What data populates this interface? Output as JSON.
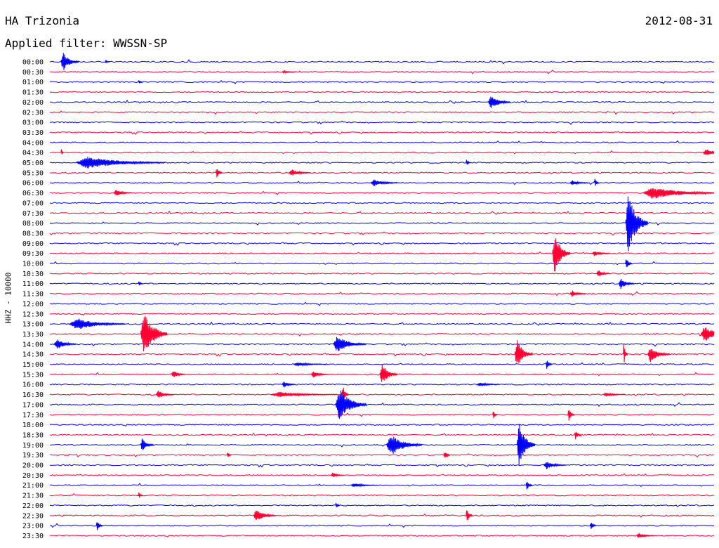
{
  "header": {
    "station": "HA Trizonia",
    "date": "2012-08-31",
    "filter_label": "Applied filter: WWSSN-SP"
  },
  "colors": {
    "odd_trace": "#0000ff",
    "even_trace": "#ff0033",
    "text": "#000000",
    "background": "#ffffff"
  },
  "chart_data": {
    "type": "line",
    "title": "HA Trizonia",
    "subtitle": "Applied filter: WWSSN-SP",
    "ylabel": "HHZ - 10000",
    "row_labels": [
      "00:00",
      "00:30",
      "01:00",
      "01:30",
      "02:00",
      "02:30",
      "03:00",
      "03:30",
      "04:00",
      "04:30",
      "05:00",
      "05:30",
      "06:00",
      "06:30",
      "07:00",
      "07:30",
      "08:00",
      "08:30",
      "09:00",
      "09:30",
      "10:00",
      "10:30",
      "11:00",
      "11:30",
      "12:00",
      "12:30",
      "13:00",
      "13:30",
      "14:00",
      "14:30",
      "15:00",
      "15:30",
      "16:00",
      "16:30",
      "17:00",
      "17:30",
      "18:00",
      "18:30",
      "19:00",
      "19:30",
      "20:00",
      "20:30",
      "21:00",
      "21:30",
      "22:00",
      "22:30",
      "23:00",
      "23:30"
    ],
    "minutes_per_row": 30,
    "grid": false,
    "events": [
      {
        "row": 0,
        "minute": 0.5,
        "amp": 14,
        "dur": 0.8
      },
      {
        "row": 0,
        "minute": 2.5,
        "amp": 3,
        "dur": 0.2
      },
      {
        "row": 1,
        "minute": 10.5,
        "amp": 2,
        "dur": 0.6
      },
      {
        "row": 2,
        "minute": 4.0,
        "amp": 3,
        "dur": 0.2
      },
      {
        "row": 4,
        "minute": 19.8,
        "amp": 10,
        "dur": 1.0
      },
      {
        "row": 9,
        "minute": 0.5,
        "amp": 6,
        "dur": 0.1
      },
      {
        "row": 9,
        "minute": 29.5,
        "amp": 5,
        "dur": 1.2
      },
      {
        "row": 10,
        "minute": 1.2,
        "amp": 9,
        "dur": 4.0
      },
      {
        "row": 10,
        "minute": 18.8,
        "amp": 6,
        "dur": 0.2
      },
      {
        "row": 11,
        "minute": 7.5,
        "amp": 10,
        "dur": 0.3
      },
      {
        "row": 11,
        "minute": 10.8,
        "amp": 5,
        "dur": 1.0
      },
      {
        "row": 12,
        "minute": 14.5,
        "amp": 5,
        "dur": 1.2
      },
      {
        "row": 12,
        "minute": 23.5,
        "amp": 4,
        "dur": 0.8
      },
      {
        "row": 12,
        "minute": 24.6,
        "amp": 7,
        "dur": 0.2
      },
      {
        "row": 13,
        "minute": 2.9,
        "amp": 5,
        "dur": 0.8
      },
      {
        "row": 13,
        "minute": 26.8,
        "amp": 9,
        "dur": 3.5
      },
      {
        "row": 16,
        "minute": 26.0,
        "amp": 48,
        "dur": 1.0
      },
      {
        "row": 19,
        "minute": 22.7,
        "amp": 30,
        "dur": 0.8
      },
      {
        "row": 19,
        "minute": 24.5,
        "amp": 4,
        "dur": 0.8
      },
      {
        "row": 20,
        "minute": 26.0,
        "amp": 9,
        "dur": 0.3
      },
      {
        "row": 21,
        "minute": 24.7,
        "amp": 6,
        "dur": 0.6
      },
      {
        "row": 22,
        "minute": 25.7,
        "amp": 8,
        "dur": 0.7
      },
      {
        "row": 22,
        "minute": 4.0,
        "amp": 4,
        "dur": 0.2
      },
      {
        "row": 23,
        "minute": 23.5,
        "amp": 5,
        "dur": 0.7
      },
      {
        "row": 26,
        "minute": 0.9,
        "amp": 9,
        "dur": 2.5
      },
      {
        "row": 27,
        "minute": 4.1,
        "amp": 36,
        "dur": 1.2
      },
      {
        "row": 27,
        "minute": 29.4,
        "amp": 12,
        "dur": 1.3
      },
      {
        "row": 28,
        "minute": 0.2,
        "amp": 8,
        "dur": 1.0
      },
      {
        "row": 28,
        "minute": 12.8,
        "amp": 12,
        "dur": 1.5
      },
      {
        "row": 29,
        "minute": 21.0,
        "amp": 22,
        "dur": 0.8
      },
      {
        "row": 29,
        "minute": 25.9,
        "amp": 16,
        "dur": 0.2
      },
      {
        "row": 29,
        "minute": 27.0,
        "amp": 12,
        "dur": 1.0
      },
      {
        "row": 30,
        "minute": 11.0,
        "amp": 3,
        "dur": 1.5
      },
      {
        "row": 30,
        "minute": 22.4,
        "amp": 7,
        "dur": 0.3
      },
      {
        "row": 31,
        "minute": 5.5,
        "amp": 6,
        "dur": 0.6
      },
      {
        "row": 31,
        "minute": 11.8,
        "amp": 5,
        "dur": 0.8
      },
      {
        "row": 31,
        "minute": 14.9,
        "amp": 16,
        "dur": 0.8
      },
      {
        "row": 32,
        "minute": 10.5,
        "amp": 5,
        "dur": 0.6
      },
      {
        "row": 32,
        "minute": 19.3,
        "amp": 3,
        "dur": 1.0
      },
      {
        "row": 33,
        "minute": 4.8,
        "amp": 6,
        "dur": 0.8
      },
      {
        "row": 33,
        "minute": 10.0,
        "amp": 4,
        "dur": 3.0
      },
      {
        "row": 33,
        "minute": 13.2,
        "amp": 14,
        "dur": 0.3
      },
      {
        "row": 33,
        "minute": 25.0,
        "amp": 3,
        "dur": 1.0
      },
      {
        "row": 34,
        "minute": 12.9,
        "amp": 24,
        "dur": 1.4
      },
      {
        "row": 35,
        "minute": 20.0,
        "amp": 8,
        "dur": 0.2
      },
      {
        "row": 35,
        "minute": 23.4,
        "amp": 10,
        "dur": 0.3
      },
      {
        "row": 37,
        "minute": 23.7,
        "amp": 7,
        "dur": 0.3
      },
      {
        "row": 38,
        "minute": 4.1,
        "amp": 10,
        "dur": 0.6
      },
      {
        "row": 38,
        "minute": 15.2,
        "amp": 16,
        "dur": 1.6
      },
      {
        "row": 38,
        "minute": 21.1,
        "amp": 34,
        "dur": 0.8
      },
      {
        "row": 39,
        "minute": 8.0,
        "amp": 6,
        "dur": 0.2
      },
      {
        "row": 39,
        "minute": 17.8,
        "amp": 7,
        "dur": 0.3
      },
      {
        "row": 40,
        "minute": 22.3,
        "amp": 6,
        "dur": 1.0
      },
      {
        "row": 41,
        "minute": 12.7,
        "amp": 4,
        "dur": 0.6
      },
      {
        "row": 42,
        "minute": 13.6,
        "amp": 3,
        "dur": 1.2
      },
      {
        "row": 42,
        "minute": 21.5,
        "amp": 8,
        "dur": 0.3
      },
      {
        "row": 43,
        "minute": 4.0,
        "amp": 5,
        "dur": 0.2
      },
      {
        "row": 44,
        "minute": 12.9,
        "amp": 6,
        "dur": 0.2
      },
      {
        "row": 45,
        "minute": 9.2,
        "amp": 9,
        "dur": 1.0
      },
      {
        "row": 45,
        "minute": 18.8,
        "amp": 12,
        "dur": 0.3
      },
      {
        "row": 46,
        "minute": 2.1,
        "amp": 8,
        "dur": 0.3
      },
      {
        "row": 46,
        "minute": 24.4,
        "amp": 6,
        "dur": 0.3
      },
      {
        "row": 47,
        "minute": 26.5,
        "amp": 4,
        "dur": 0.8
      }
    ]
  }
}
